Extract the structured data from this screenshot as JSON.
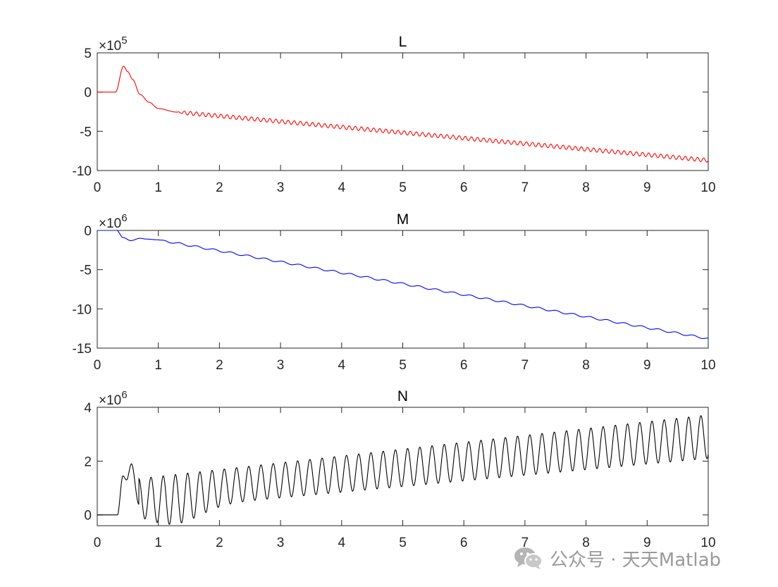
{
  "chart_data": [
    {
      "type": "line",
      "title": "L",
      "series": [
        {
          "color": "#ff0000"
        }
      ],
      "x_range": [
        0,
        10
      ],
      "ylim": [
        -10,
        5
      ],
      "exponent_label": "×10",
      "exponent_power": "5",
      "xticks": [
        "0",
        "1",
        "2",
        "3",
        "4",
        "5",
        "6",
        "7",
        "8",
        "9",
        "10"
      ],
      "yticks": [
        "5",
        "0",
        "-5",
        "-10"
      ],
      "ytick_values": [
        5,
        0,
        -5,
        -10
      ],
      "onset": 0.3,
      "bump": [
        [
          0.3,
          0.0
        ],
        [
          0.43,
          3.3
        ],
        [
          0.5,
          2.6
        ],
        [
          0.58,
          1.6
        ],
        [
          0.7,
          -0.3
        ],
        [
          0.85,
          -1.3
        ],
        [
          1.0,
          -2.1
        ],
        [
          1.3,
          -2.55
        ]
      ],
      "trend_start": [
        1.3,
        -2.55
      ],
      "trend_end": [
        10,
        -8.7
      ],
      "osc_amp": 0.25,
      "osc_period": 0.1
    },
    {
      "type": "line",
      "title": "M",
      "series": [
        {
          "color": "#0000ff"
        }
      ],
      "x_range": [
        0,
        10
      ],
      "ylim": [
        -15,
        0
      ],
      "exponent_label": "×10",
      "exponent_power": "6",
      "xticks": [
        "0",
        "1",
        "2",
        "3",
        "4",
        "5",
        "6",
        "7",
        "8",
        "9",
        "10"
      ],
      "yticks": [
        "0",
        "-5",
        "-10",
        "-15"
      ],
      "ytick_values": [
        0,
        -5,
        -10,
        -15
      ],
      "onset": 0.32,
      "bump": [
        [
          0.32,
          0.0
        ],
        [
          0.42,
          -0.9
        ],
        [
          0.55,
          -1.3
        ],
        [
          0.7,
          -1.0
        ],
        [
          0.8,
          -1.1
        ],
        [
          1.0,
          -1.2
        ]
      ],
      "trend_start": [
        1.0,
        -1.2
      ],
      "trend_end": [
        10,
        -13.8
      ],
      "osc_amp": 0.12,
      "osc_period": 0.28
    },
    {
      "type": "line",
      "title": "N",
      "series": [
        {
          "color": "#000000"
        }
      ],
      "x_range": [
        0,
        10
      ],
      "ylim": [
        -0.4,
        4
      ],
      "exponent_label": "×10",
      "exponent_power": "6",
      "xticks": [
        "0",
        "1",
        "2",
        "3",
        "4",
        "5",
        "6",
        "7",
        "8",
        "9",
        "10"
      ],
      "yticks": [
        "4",
        "2",
        "0"
      ],
      "ytick_values": [
        4,
        2,
        0
      ],
      "onset": 0.33,
      "bump": [
        [
          0.33,
          0.0
        ],
        [
          0.42,
          1.45
        ],
        [
          0.48,
          1.3
        ],
        [
          0.56,
          1.9
        ],
        [
          0.68,
          0.4
        ]
      ],
      "osc_start": 0.68,
      "osc_end": 10,
      "osc_period": 0.2,
      "peak_start": 1.35,
      "peak_end": 3.72,
      "trough_start": 0.15,
      "trough_end": 2.1,
      "trough_dip_x": 1.2,
      "trough_dip_y": -0.35
    }
  ],
  "watermark": {
    "icon": "wechat-icon",
    "text": "公众号 · 天天Matlab"
  }
}
